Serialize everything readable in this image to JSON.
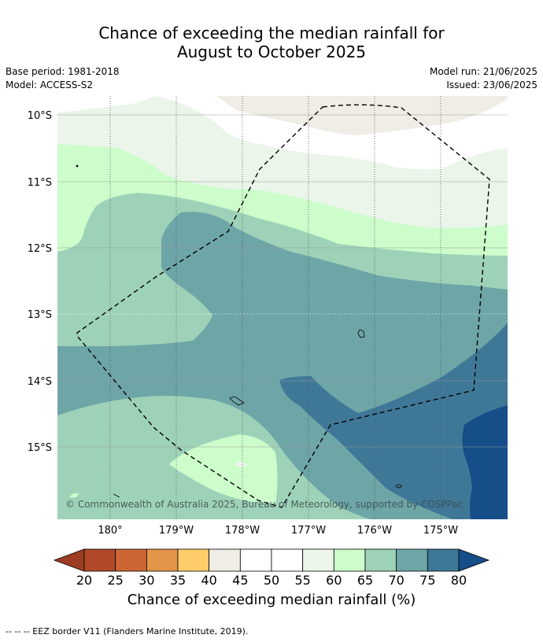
{
  "title_line1": "Chance of exceeding the median rainfall for",
  "title_line2": "August to October 2025",
  "base_period": "Base period: 1981-2018",
  "model": "Model: ACCESS-S2",
  "model_run": "Model run: 21/06/2025",
  "issued": "Issued: 23/06/2025",
  "copyright": "© Commonwealth of Australia 2025, Bureau of Meteorology, supported by COSPPac",
  "lat_labels": [
    "10°S",
    "11°S",
    "12°S",
    "13°S",
    "14°S",
    "15°S"
  ],
  "lon_labels": [
    "180°",
    "179°W",
    "178°W",
    "177°W",
    "176°W",
    "175°W"
  ],
  "colorbar": {
    "title": "Chance of exceeding median rainfall (%)",
    "ticks": [
      "20",
      "25",
      "30",
      "35",
      "40",
      "45",
      "50",
      "55",
      "60",
      "65",
      "70",
      "75",
      "80"
    ],
    "colors": [
      "#b1492a",
      "#cd6634",
      "#e39549",
      "#fecd69",
      "#f0ece6",
      "#ffffff",
      "#ffffff",
      "#ebf5ea",
      "#ccfdcb",
      "#9ed2b8",
      "#6ea5a7",
      "#3f7897"
    ],
    "under_color": "#9c3c23",
    "over_color": "#154e88"
  },
  "eez_note": "-- -- -- EEZ border V11 (Flanders Marine Institute, 2019)."
}
